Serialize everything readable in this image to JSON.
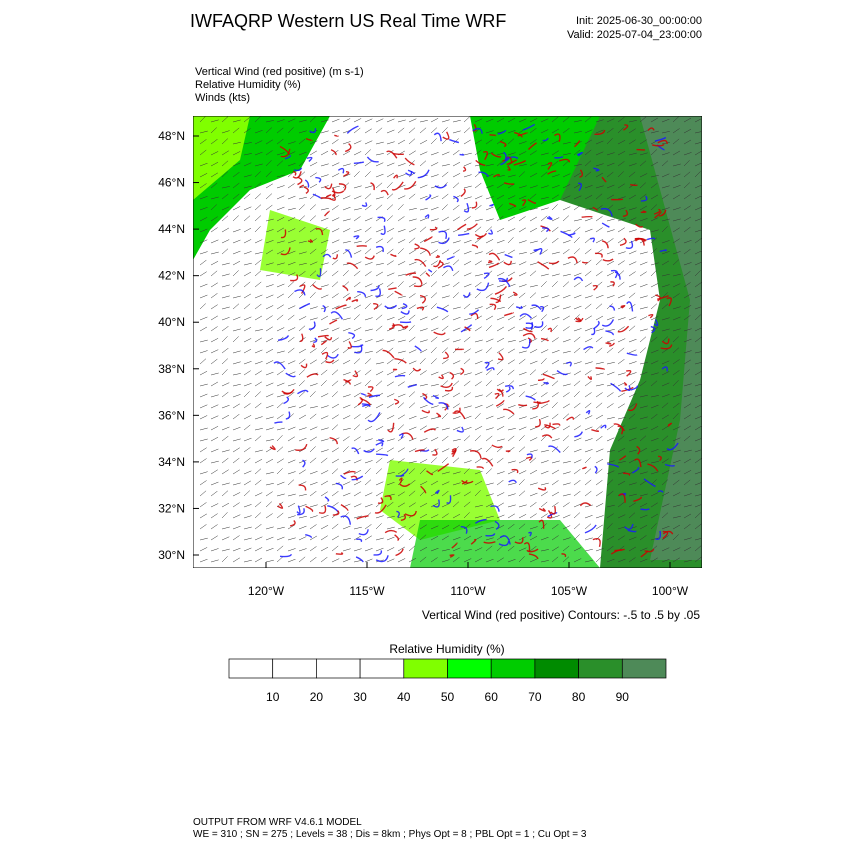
{
  "header": {
    "title": "IWFAQRP Western US Real Time WRF",
    "init": "Init: 2025-06-30_00:00:00",
    "valid": "Valid: 2025-07-04_23:00:00"
  },
  "fields": [
    "Vertical Wind (red positive)   (m s-1)",
    "Relative Humidity   (%)",
    "Winds   (kts)"
  ],
  "map": {
    "lat_ticks": [
      {
        "value": 48,
        "label": "48°N"
      },
      {
        "value": 46,
        "label": "46°N"
      },
      {
        "value": 44,
        "label": "44°N"
      },
      {
        "value": 42,
        "label": "42°N"
      },
      {
        "value": 40,
        "label": "40°N"
      },
      {
        "value": 38,
        "label": "38°N"
      },
      {
        "value": 36,
        "label": "36°N"
      },
      {
        "value": 34,
        "label": "34°N"
      },
      {
        "value": 32,
        "label": "32°N"
      },
      {
        "value": 30,
        "label": "30°N"
      }
    ],
    "lon_ticks": [
      {
        "value": -120,
        "label": "120°W"
      },
      {
        "value": -115,
        "label": "115°W"
      },
      {
        "value": -110,
        "label": "110°W"
      },
      {
        "value": -105,
        "label": "105°W"
      },
      {
        "value": -100,
        "label": "100°W"
      }
    ],
    "contour_note": "Vertical Wind (red positive) Contours: -.5 to .5 by .05"
  },
  "colorbar": {
    "title": "Relative Humidity   (%)",
    "labels": [
      10,
      20,
      30,
      40,
      50,
      60,
      70,
      80,
      90
    ],
    "colors": [
      "#ffffff",
      "#ffffff",
      "#ffffff",
      "#ffffff",
      "#80ff00",
      "#00ff00",
      "#00cc00",
      "#008b00",
      "#2a8f2a",
      "#4e8a58"
    ]
  },
  "footer": [
    "OUTPUT FROM WRF V4.6.1 MODEL",
    "WE = 310 ; SN = 275 ; Levels = 38 ; Dis = 8km ; Phys Opt = 8 ; PBL Opt = 1 ; Cu Opt = 3"
  ]
}
